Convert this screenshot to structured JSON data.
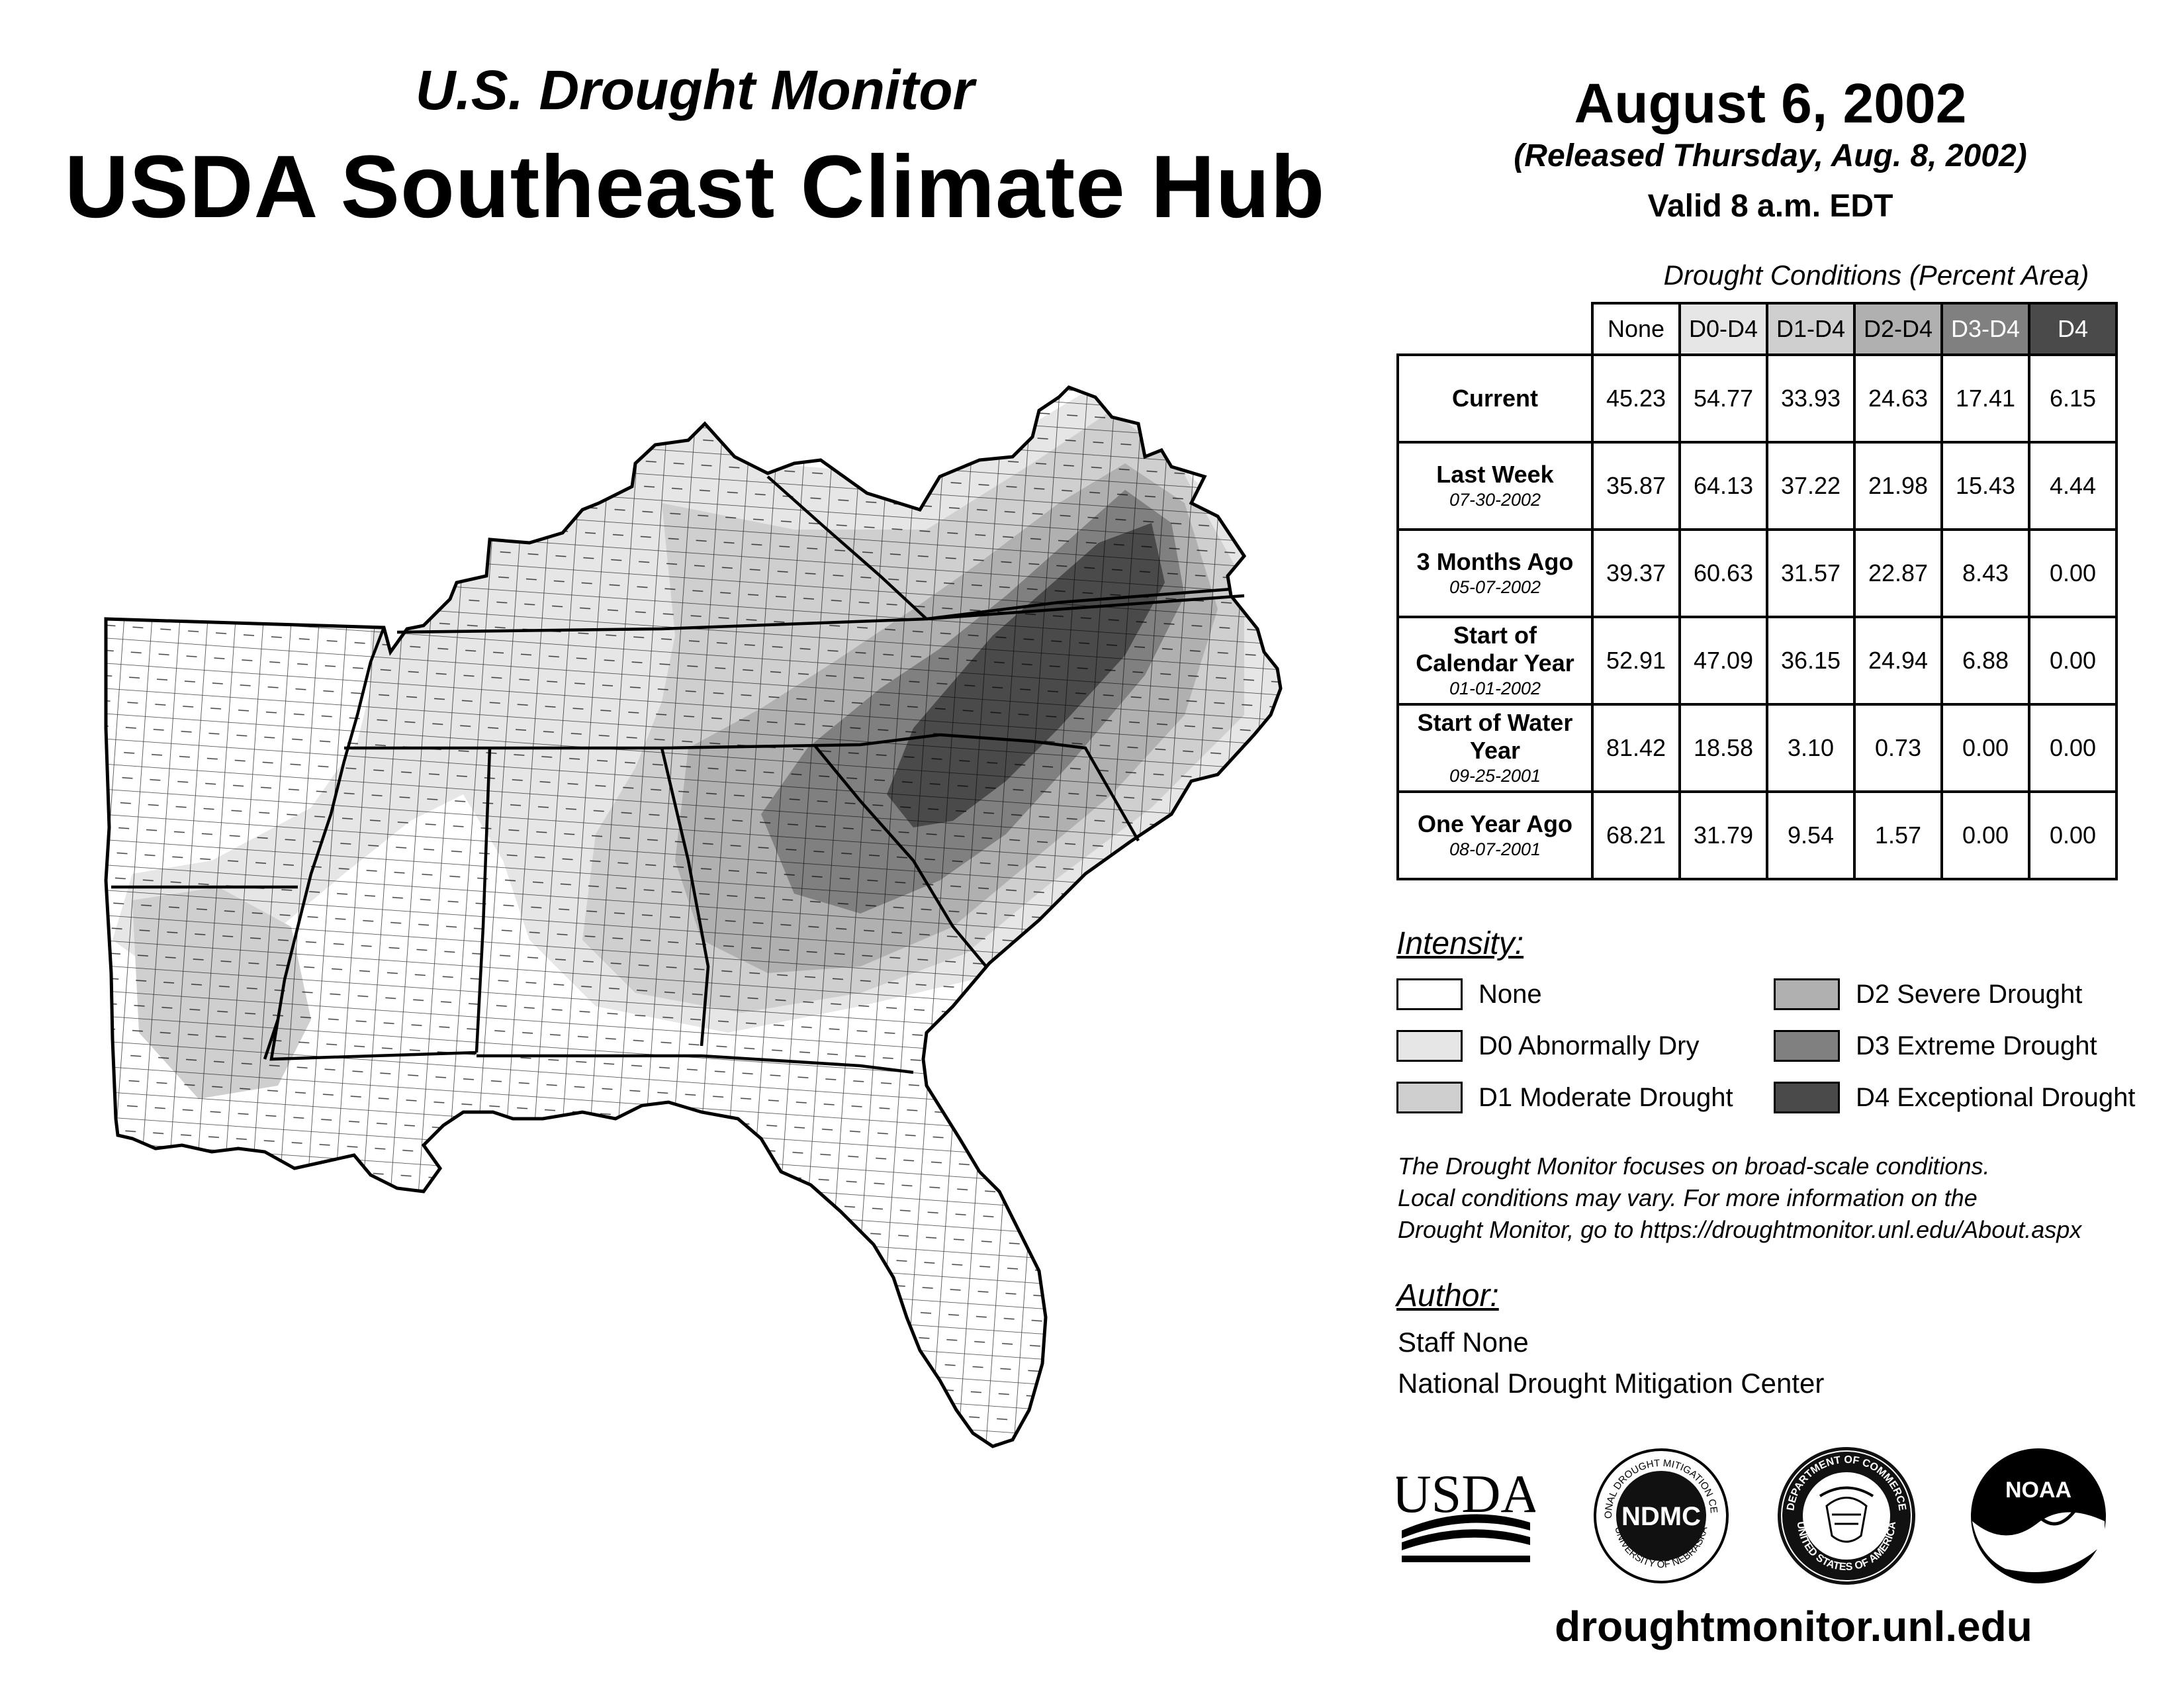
{
  "header": {
    "subtitle": "U.S. Drought Monitor",
    "title": "USDA Southeast Climate Hub",
    "date": "August 6, 2002",
    "released": "(Released Thursday, Aug. 8, 2002)",
    "valid": "Valid 8 a.m. EDT"
  },
  "table": {
    "caption": "Drought Conditions (Percent Area)",
    "columns": [
      "None",
      "D0-D4",
      "D1-D4",
      "D2-D4",
      "D3-D4",
      "D4"
    ],
    "rows": [
      {
        "label": "Current",
        "date": "",
        "values": [
          "45.23",
          "54.77",
          "33.93",
          "24.63",
          "17.41",
          "6.15"
        ]
      },
      {
        "label": "Last Week",
        "date": "07-30-2002",
        "values": [
          "35.87",
          "64.13",
          "37.22",
          "21.98",
          "15.43",
          "4.44"
        ]
      },
      {
        "label": "3 Months Ago",
        "date": "05-07-2002",
        "values": [
          "39.37",
          "60.63",
          "31.57",
          "22.87",
          "8.43",
          "0.00"
        ]
      },
      {
        "label": "Start of Calendar Year",
        "date": "01-01-2002",
        "values": [
          "52.91",
          "47.09",
          "36.15",
          "24.94",
          "6.88",
          "0.00"
        ]
      },
      {
        "label": "Start of Water Year",
        "date": "09-25-2001",
        "values": [
          "81.42",
          "18.58",
          "3.10",
          "0.73",
          "0.00",
          "0.00"
        ]
      },
      {
        "label": "One Year Ago",
        "date": "08-07-2001",
        "values": [
          "68.21",
          "31.79",
          "9.54",
          "1.57",
          "0.00",
          "0.00"
        ]
      }
    ]
  },
  "legend": {
    "title": "Intensity:",
    "items": [
      {
        "label": "None",
        "color": "#ffffff"
      },
      {
        "label": "D0 Abnormally Dry",
        "color": "#e6e6e6"
      },
      {
        "label": "D1 Moderate Drought",
        "color": "#cfcfcf"
      },
      {
        "label": "D2 Severe Drought",
        "color": "#b0b0b0"
      },
      {
        "label": "D3 Extreme Drought",
        "color": "#808080"
      },
      {
        "label": "D4 Exceptional Drought",
        "color": "#4a4a4a"
      }
    ]
  },
  "note": {
    "line1": "The Drought Monitor focuses on broad-scale conditions.",
    "line2": "Local conditions may vary. For more information on the",
    "line3": "Drought Monitor, go to https://droughtmonitor.unl.edu/About.aspx"
  },
  "author": {
    "title": "Author:",
    "name": "Staff None",
    "org": "National Drought Mitigation Center"
  },
  "logos": {
    "usda": "USDA",
    "ndmc": "NDMC",
    "ndmc_ring_top": "NATIONAL DROUGHT MITIGATION CENTER",
    "ndmc_ring_bottom": "UNIVERSITY OF NEBRASKA",
    "commerce_ring_top": "DEPARTMENT OF COMMERCE",
    "commerce_ring_bottom": "UNITED STATES OF AMERICA",
    "noaa": "NOAA"
  },
  "website": "droughtmonitor.unl.edu",
  "colors": {
    "d0": "#e6e6e6",
    "d1": "#cfcfcf",
    "d2": "#b0b0b0",
    "d3": "#808080",
    "d4": "#4a4a4a"
  }
}
